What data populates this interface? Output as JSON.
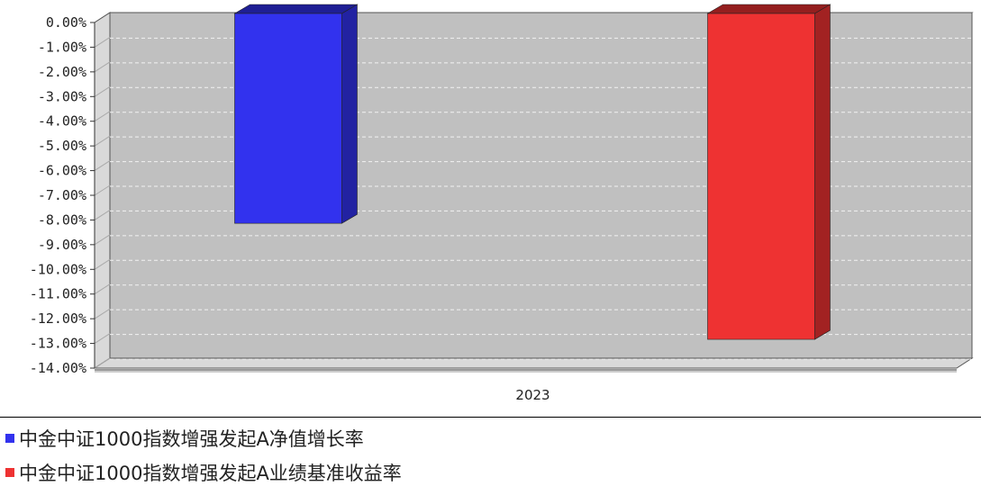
{
  "chart_data": {
    "type": "bar",
    "categories": [
      "2023"
    ],
    "series": [
      {
        "name": "中金中证1000指数增强发起A净值增长率",
        "values": [
          -8.5
        ],
        "color": "#3232ee"
      },
      {
        "name": "中金中证1000指数增强发起A业绩基准收益率",
        "values": [
          -13.2
        ],
        "color": "#ee3232"
      }
    ],
    "ylim": [
      -14,
      0
    ],
    "y_ticks": [
      "0.00%",
      "-1.00%",
      "-2.00%",
      "-3.00%",
      "-4.00%",
      "-5.00%",
      "-6.00%",
      "-7.00%",
      "-8.00%",
      "-9.00%",
      "-10.00%",
      "-11.00%",
      "-12.00%",
      "-13.00%",
      "-14.00%"
    ],
    "grid": true,
    "legend_position": "bottom-left",
    "style": "3d",
    "plot_background": "#c0c0c0"
  }
}
